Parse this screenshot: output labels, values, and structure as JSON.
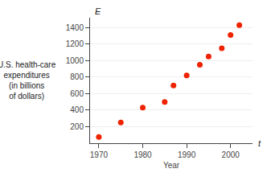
{
  "chart_data": {
    "type": "scatter",
    "x": [
      1970,
      1975,
      1980,
      1985,
      1987,
      1990,
      1993,
      1995,
      1998,
      2000,
      2002
    ],
    "values": [
      75,
      250,
      430,
      500,
      700,
      820,
      950,
      1050,
      1150,
      1310,
      1430
    ],
    "color": "#ee2200",
    "xlim": [
      1968,
      2005
    ],
    "ylim": [
      0,
      1520
    ],
    "xticks": [
      1970,
      1980,
      1990,
      2000
    ],
    "yticks": [
      200,
      400,
      600,
      800,
      1000,
      1200,
      1400
    ],
    "xlabel": "Year",
    "ylabel": "U.S. health-care\nexpenditures\n(in billions\nof dollars)",
    "annotations": [
      "E",
      "t"
    ],
    "grid": "y"
  }
}
